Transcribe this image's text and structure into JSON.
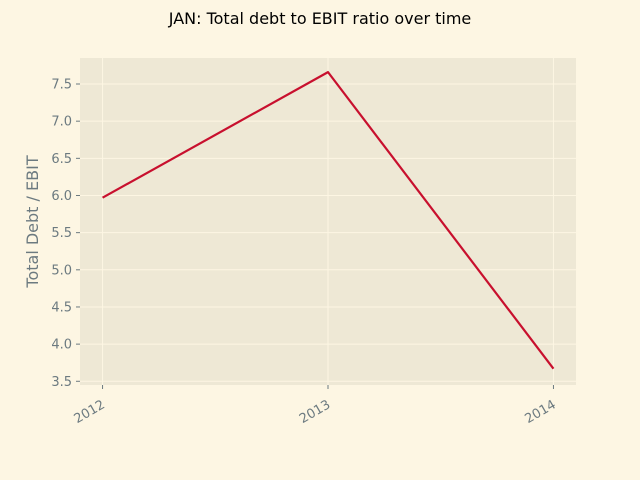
{
  "chart_data": {
    "type": "line",
    "title": "JAN: Total debt to EBIT ratio over time",
    "xlabel": "",
    "ylabel": "Total Debt / EBIT",
    "x": [
      "2012",
      "2013",
      "2014"
    ],
    "series": [
      {
        "values": [
          5.97,
          7.66,
          3.67
        ],
        "color": "#c8102e"
      }
    ],
    "xlim": [
      2011.9,
      2014.1
    ],
    "ylim": [
      3.45,
      7.85
    ],
    "yticks": [
      "3.5",
      "4.0",
      "4.5",
      "5.0",
      "5.5",
      "6.0",
      "6.5",
      "7.0",
      "7.5"
    ],
    "grid": true,
    "legend": "none",
    "colors": {
      "background": "#fdf6e3",
      "plot_area": "#eee8d5",
      "grid": "#fdf6e3",
      "text": "#6c7a80"
    }
  }
}
